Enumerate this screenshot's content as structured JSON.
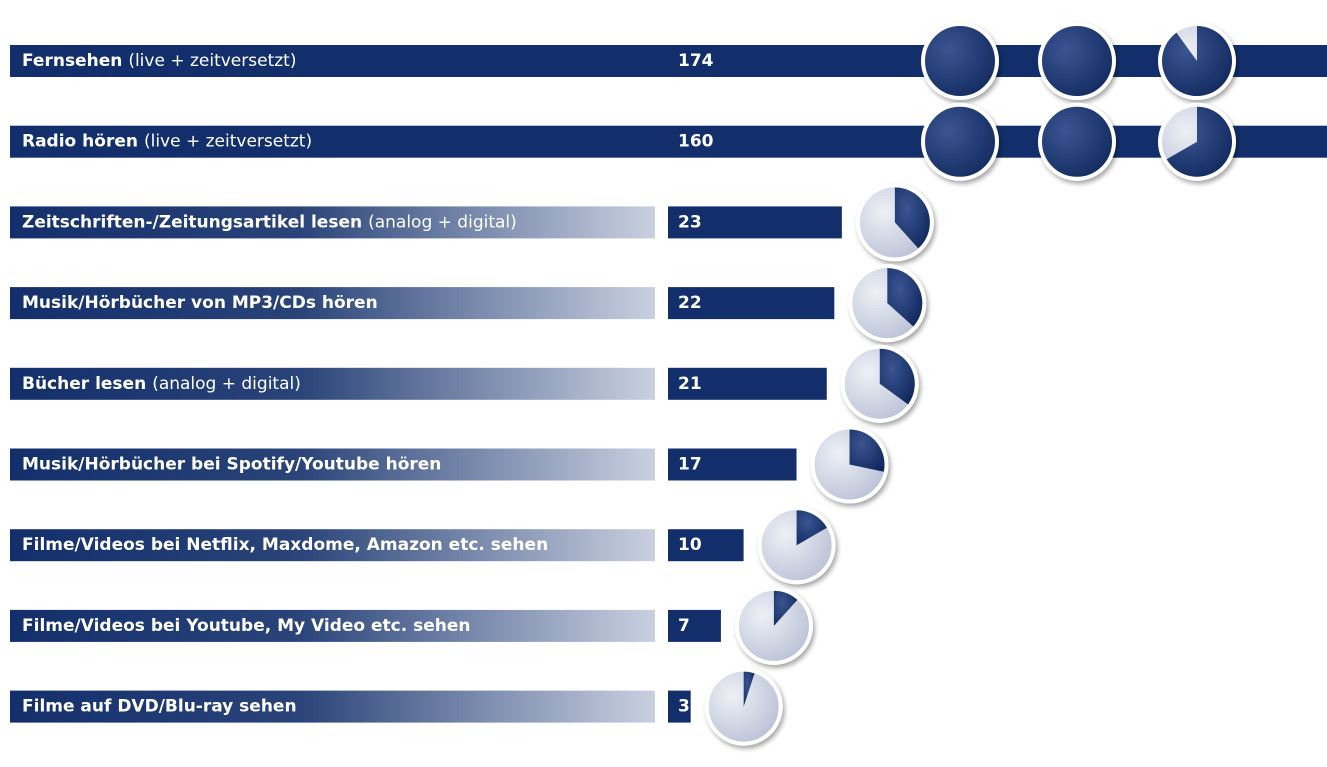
{
  "chart_data": {
    "type": "bar",
    "categories": [
      {
        "name": "Fernsehen",
        "detail": "(live + zeitversetzt)"
      },
      {
        "name": "Radio hören",
        "detail": "(live + zeitversetzt)"
      },
      {
        "name": "Zeitschriften-/Zeitungsartikel lesen",
        "detail": "(analog + digital)"
      },
      {
        "name": "Musik/Hörbücher von MP3/CDs hören"
      },
      {
        "name": "Bücher lesen",
        "detail": "(analog + digital)"
      },
      {
        "name": "Musik/Hörbücher bei Spotify/Youtube hören"
      },
      {
        "name": "Filme/Videos bei Netflix, Maxdome, Amazon etc. sehen"
      },
      {
        "name": "Filme/Videos bei Youtube, My Video etc. sehen"
      },
      {
        "name": "Filme auf DVD/Blu-ray sehen"
      }
    ],
    "values": [
      174,
      160,
      23,
      22,
      21,
      17,
      10,
      7,
      3
    ],
    "color": "#132f6b"
  }
}
